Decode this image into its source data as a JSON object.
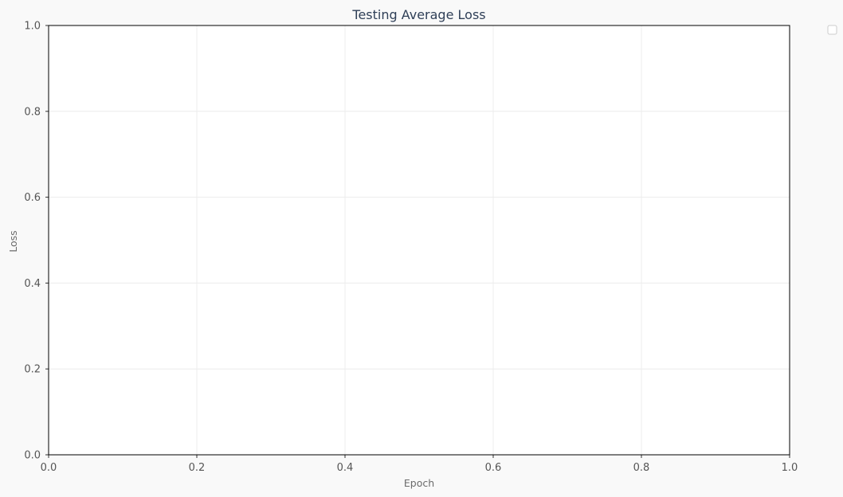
{
  "chart_data": {
    "type": "line",
    "title": "Testing Average Loss",
    "xlabel": "Epoch",
    "ylabel": "Loss",
    "xlim": [
      0,
      1
    ],
    "ylim": [
      0,
      1
    ],
    "x_ticks": [
      "0.0",
      "0.2",
      "0.4",
      "0.6",
      "0.8",
      "1.0"
    ],
    "y_ticks": [
      "0.0",
      "0.2",
      "0.4",
      "0.6",
      "0.8",
      "1.0"
    ],
    "series": [],
    "grid": true,
    "legend": "outside-top-right",
    "colors": {
      "background": "#f9f9f9",
      "plot_background": "#ffffff",
      "title": "#2f3f57",
      "axis_label": "#6b6b6b",
      "tick_label": "#555555",
      "grid": "#ececec"
    }
  }
}
